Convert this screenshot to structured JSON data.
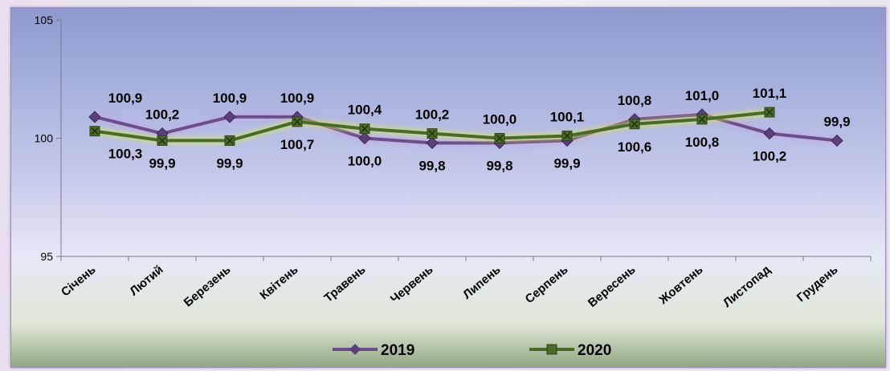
{
  "chart_data": {
    "type": "line",
    "title": "",
    "xlabel": "",
    "ylabel": "",
    "ylim": [
      95,
      105
    ],
    "yticks": [
      "95",
      "100",
      "105"
    ],
    "grid": false,
    "legend_position": "bottom",
    "categories": [
      "Січень",
      "Лютий",
      "Березень",
      "Квітень",
      "Травень",
      "Червень",
      "Липень",
      "Серпень",
      "Вересень",
      "Жовтень",
      "Листопад",
      "Грудень"
    ],
    "series": [
      {
        "name": "2019",
        "color": "#6b4f8a",
        "marker": "diamond",
        "values": [
          100.9,
          100.2,
          100.9,
          100.9,
          100.0,
          99.8,
          99.8,
          99.9,
          100.8,
          101.0,
          100.2,
          99.9
        ],
        "labels": [
          "100,9",
          "100,2",
          "100,9",
          "100,9",
          "100,0",
          "99,8",
          "99,8",
          "99,9",
          "100,8",
          "101,0",
          "100,2",
          "99,9"
        ]
      },
      {
        "name": "2020",
        "color": "#4a6a2a",
        "marker": "square",
        "values": [
          100.3,
          99.9,
          99.9,
          100.7,
          100.4,
          100.2,
          100.0,
          100.1,
          100.6,
          100.8,
          101.1,
          null
        ],
        "labels": [
          "100,3",
          "99,9",
          "99,9",
          "100,7",
          "100,4",
          "100,2",
          "100,0",
          "100,1",
          "100,6",
          "100,8",
          "101,1",
          ""
        ]
      }
    ]
  }
}
